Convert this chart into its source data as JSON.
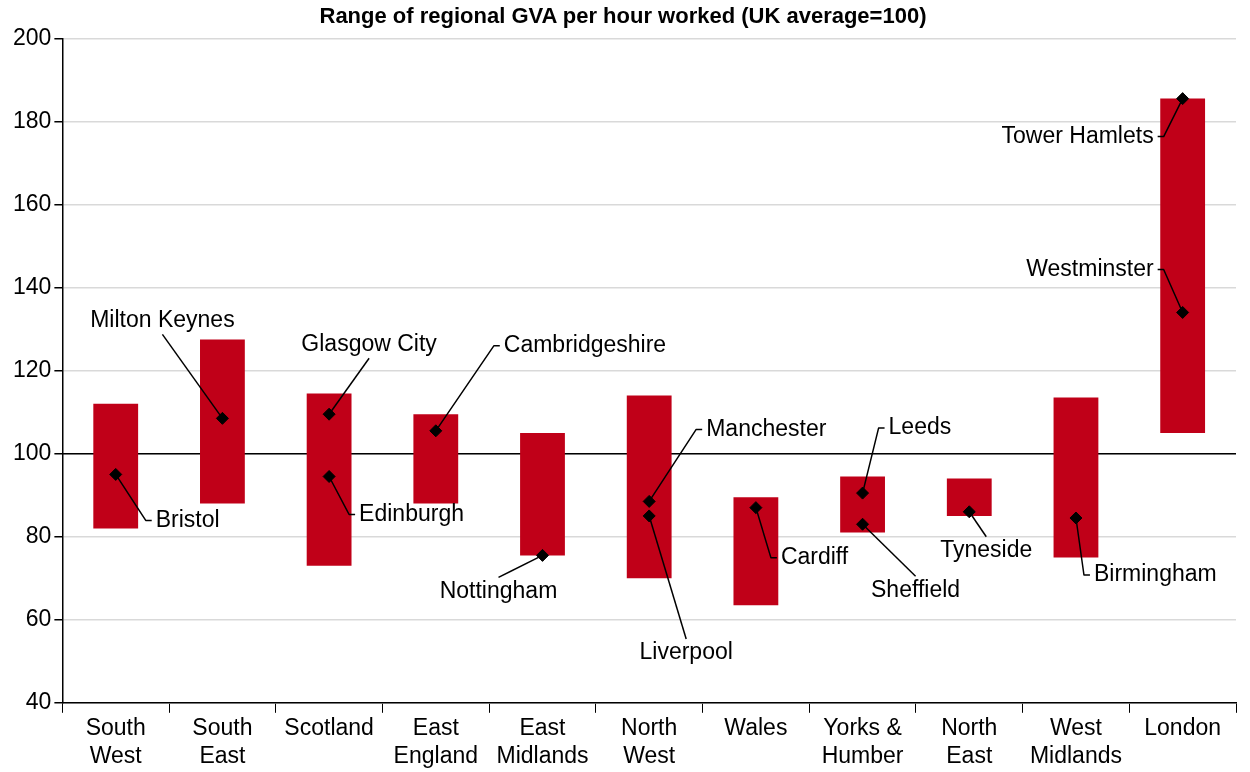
{
  "chart_data": {
    "type": "bar",
    "title": "Range of regional GVA per hour worked (UK average=100)",
    "categories": [
      "South West",
      "South East",
      "Scotland",
      "East England",
      "East Midlands",
      "North West",
      "Wales",
      "Yorks & Humber",
      "North East",
      "West Midlands",
      "London"
    ],
    "series": [
      {
        "color": "#c00018",
        "base": [
          82,
          88,
          73,
          88,
          75.5,
          70,
          63.5,
          81,
          85,
          75,
          105
        ],
        "values": [
          30,
          39.5,
          41.5,
          21.5,
          29.5,
          44,
          26,
          13.5,
          9,
          38.5,
          80.5
        ]
      },
      {
        "type": "scatter",
        "color": "#000000",
        "marker": "diamond",
        "x": [
          "South West",
          "South East",
          "Scotland",
          "Scotland",
          "East England",
          "East Midlands",
          "North West",
          "North West",
          "Wales",
          "Yorks & Humber",
          "Yorks & Humber",
          "North East",
          "West Midlands",
          "London",
          "London"
        ],
        "values": [
          95,
          108.5,
          109.5,
          94.5,
          105.5,
          75.5,
          88.5,
          85,
          87,
          90.5,
          83,
          86,
          84.5,
          185.5,
          134
        ]
      }
    ],
    "ylim": [
      40,
      200
    ],
    "yticks": [
      40,
      60,
      80,
      100,
      120,
      140,
      160,
      180,
      200
    ],
    "grid": "y",
    "ref_lines": [
      {
        "axis": "y",
        "value": 100,
        "color": "#000000"
      }
    ],
    "annotations": [
      {
        "text": "Bristol",
        "x": "South West",
        "y": 95
      },
      {
        "text": "Milton Keynes",
        "x": "South East",
        "y": 108.5
      },
      {
        "text": "Glasgow City",
        "x": "Scotland",
        "y": 109.5
      },
      {
        "text": "Edinburgh",
        "x": "Scotland",
        "y": 94.5
      },
      {
        "text": "Cambridgeshire",
        "x": "East England",
        "y": 105.5
      },
      {
        "text": "Nottingham",
        "x": "East Midlands",
        "y": 75.5
      },
      {
        "text": "Manchester",
        "x": "North West",
        "y": 88.5
      },
      {
        "text": "Liverpool",
        "x": "North West",
        "y": 85
      },
      {
        "text": "Cardiff",
        "x": "Wales",
        "y": 87
      },
      {
        "text": "Leeds",
        "x": "Yorks & Humber",
        "y": 90.5
      },
      {
        "text": "Sheffield",
        "x": "Yorks & Humber",
        "y": 83
      },
      {
        "text": "Tyneside",
        "x": "North East",
        "y": 86
      },
      {
        "text": "Birmingham",
        "x": "West Midlands",
        "y": 84.5
      },
      {
        "text": "Tower Hamlets",
        "x": "London",
        "y": 185.5
      },
      {
        "text": "Westminster",
        "x": "London",
        "y": 134
      }
    ]
  }
}
